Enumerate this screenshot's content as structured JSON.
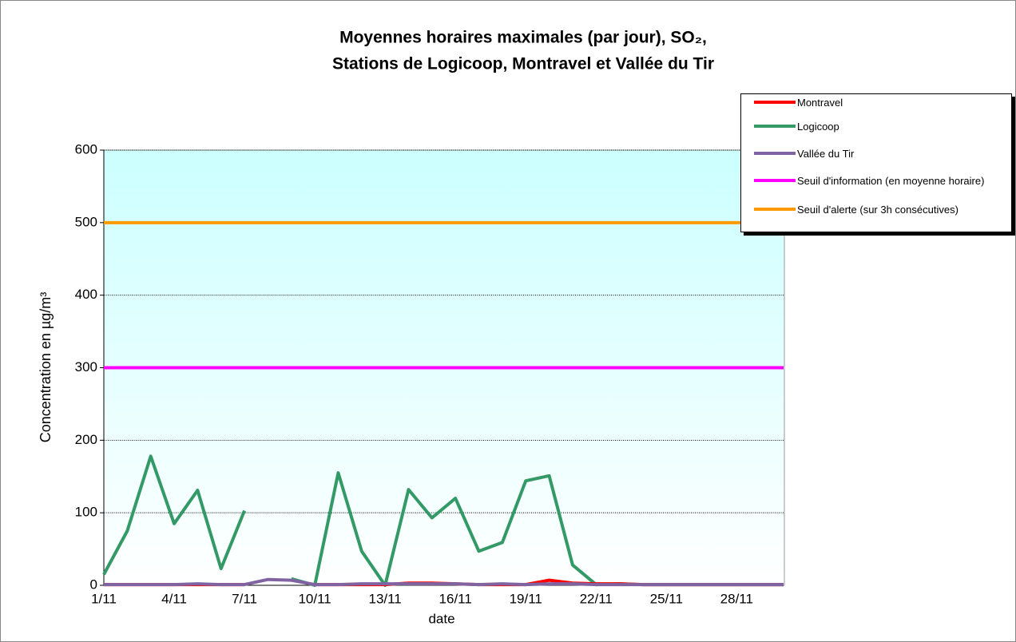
{
  "chart_data": {
    "type": "line",
    "title": [
      "Moyennes horaires maximales (par jour), SO₂,",
      "Stations de Logicoop, Montravel et Vallée du Tir"
    ],
    "x_label": "date",
    "y_label": "Concentration en µg/m³",
    "categories": [
      "1/11",
      null,
      null,
      "4/11",
      null,
      null,
      "7/11",
      null,
      null,
      "10/11",
      null,
      null,
      "13/11",
      null,
      null,
      "16/11",
      null,
      null,
      "19/11",
      null,
      null,
      "22/11",
      null,
      null,
      "25/11",
      null,
      null,
      "28/11",
      null,
      null
    ],
    "series": [
      {
        "name": "Montravel",
        "color": "#ff0000",
        "values": [
          1,
          1,
          1,
          1,
          1,
          1,
          1,
          null,
          null,
          1,
          1,
          1,
          1,
          3,
          3,
          2,
          1,
          1,
          1,
          7,
          3,
          2,
          2,
          1,
          1,
          1,
          1,
          1,
          1,
          1
        ]
      },
      {
        "name": "Logicoop",
        "color": "#339966",
        "values": [
          15,
          75,
          178,
          85,
          131,
          23,
          103,
          null,
          9,
          0,
          155,
          47,
          0,
          132,
          93,
          120,
          47,
          59,
          144,
          151,
          28,
          1,
          2,
          1,
          1,
          1,
          1,
          1,
          1,
          1
        ]
      },
      {
        "name": "Vallée du Tir",
        "color": "#8064a2",
        "values": [
          1,
          1,
          1,
          1,
          2,
          1,
          1,
          8,
          7,
          1,
          1,
          2,
          2,
          2,
          2,
          2,
          1,
          2,
          1,
          2,
          2,
          1,
          1,
          1,
          1,
          1,
          1,
          1,
          1,
          1
        ]
      },
      {
        "name": "Seuil d'information (en moyenne horaire)",
        "color": "#ff00ff",
        "values": [
          300,
          300,
          300,
          300,
          300,
          300,
          300,
          300,
          300,
          300,
          300,
          300,
          300,
          300,
          300,
          300,
          300,
          300,
          300,
          300,
          300,
          300,
          300,
          300,
          300,
          300,
          300,
          300,
          300,
          300
        ]
      },
      {
        "name": "Seuil d'alerte (sur 3h consécutives)",
        "color": "#ff9900",
        "values": [
          500,
          500,
          500,
          500,
          500,
          500,
          500,
          500,
          500,
          500,
          500,
          500,
          500,
          500,
          500,
          500,
          500,
          500,
          500,
          500,
          500,
          500,
          500,
          500,
          500,
          500,
          500,
          500,
          500,
          500
        ]
      }
    ],
    "ylim": [
      0,
      600
    ],
    "yticks": [
      0,
      100,
      200,
      300,
      400,
      500,
      600
    ],
    "grid": true,
    "legend": "upper right"
  }
}
